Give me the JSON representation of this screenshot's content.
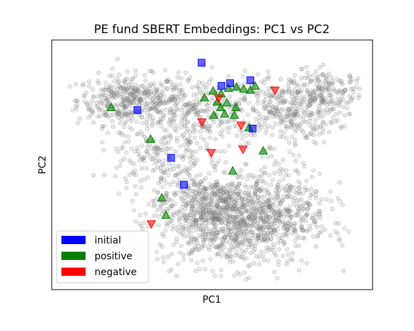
{
  "chart_data": {
    "type": "scatter",
    "title": "PE fund SBERT Embeddings: PC1 vs PC2",
    "xlabel": "PC1",
    "ylabel": "PC2",
    "xlim": [
      0,
      100
    ],
    "ylim": [
      0,
      100
    ],
    "grid": false,
    "show_ticks": false,
    "legend_position": "lower-left",
    "background_style": "dense gray cloud of ~3000 semi-transparent circles: a wide upper band (left lobe near x 10-30, right lobe near x 65-95, y 65-85) and a dense lower lobe centered near x 55, y 25",
    "series": [
      {
        "name": "initial",
        "marker": "square",
        "color": "#0000ff",
        "x": [
          46.7,
          26.7,
          52.9,
          55.6,
          61.9,
          62.6,
          37.2,
          41.2
        ],
        "y": [
          90.9,
          71.9,
          81.6,
          82.7,
          83.9,
          64.5,
          52.8,
          42.0
        ]
      },
      {
        "name": "positive",
        "marker": "triangle-up",
        "color": "#008000",
        "x": [
          18.5,
          30.8,
          47.6,
          50.3,
          52.8,
          55.1,
          57.6,
          59.8,
          61.9,
          63.4,
          51.6,
          52.6,
          54.6,
          57.4,
          50.5,
          53.9,
          56.9,
          61.5,
          65.9,
          56.4,
          34.3,
          35.6
        ],
        "y": [
          73.0,
          60.3,
          76.9,
          79.6,
          78.5,
          80.7,
          81.2,
          80.4,
          80.0,
          81.6,
          75.2,
          73.0,
          74.9,
          73.0,
          69.9,
          70.4,
          69.9,
          64.9,
          55.6,
          47.6,
          36.8,
          29.8
        ]
      },
      {
        "name": "negative",
        "marker": "triangle-down",
        "color": "#ff0000",
        "x": [
          69.6,
          46.8,
          52.0,
          59.0,
          49.7,
          59.6,
          31.0
        ],
        "y": [
          79.8,
          67.1,
          76.6,
          65.8,
          54.8,
          56.2,
          26.3
        ]
      }
    ]
  }
}
